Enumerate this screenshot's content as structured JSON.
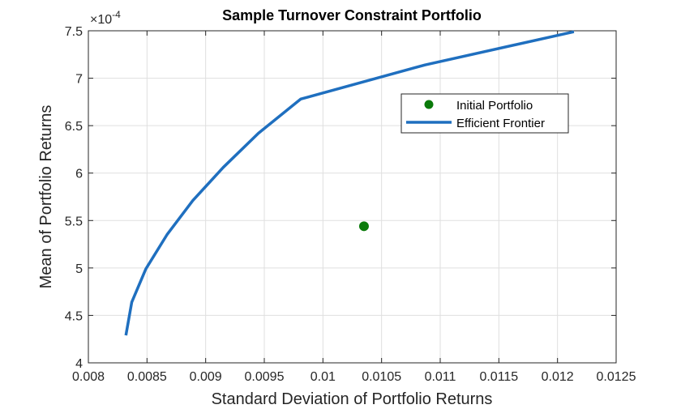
{
  "chart_data": {
    "type": "line",
    "title": "Sample Turnover Constraint Portfolio",
    "xlabel": "Standard Deviation of Portfolio Returns",
    "ylabel": "Mean of Portfolio Returns",
    "y_exponent_label": "×10",
    "y_exponent_power": "-4",
    "xlim": [
      0.008,
      0.0125
    ],
    "ylim": [
      4.0,
      7.5
    ],
    "y_scale_factor": "1e-4",
    "xticks": [
      "0.008",
      "0.0085",
      "0.009",
      "0.0095",
      "0.01",
      "0.0105",
      "0.011",
      "0.0115",
      "0.012",
      "0.0125"
    ],
    "yticks": [
      "4",
      "4.5",
      "5",
      "5.5",
      "6",
      "6.5",
      "7",
      "7.5"
    ],
    "grid": true,
    "legend_position": "top-right",
    "series": [
      {
        "name": "Initial Portfolio",
        "kind": "scatter",
        "color": "#0a7a0a",
        "points": [
          {
            "x": 0.01035,
            "y": 5.44
          }
        ]
      },
      {
        "name": "Efficient Frontier",
        "kind": "line",
        "color": "#1f6fbf",
        "points": [
          {
            "x": 0.00832,
            "y": 4.29
          },
          {
            "x": 0.00837,
            "y": 4.64
          },
          {
            "x": 0.00849,
            "y": 4.99
          },
          {
            "x": 0.00867,
            "y": 5.35
          },
          {
            "x": 0.00889,
            "y": 5.71
          },
          {
            "x": 0.00915,
            "y": 6.06
          },
          {
            "x": 0.00945,
            "y": 6.42
          },
          {
            "x": 0.00981,
            "y": 6.78
          },
          {
            "x": 0.01087,
            "y": 7.14
          },
          {
            "x": 0.01214,
            "y": 7.49
          }
        ]
      }
    ]
  }
}
